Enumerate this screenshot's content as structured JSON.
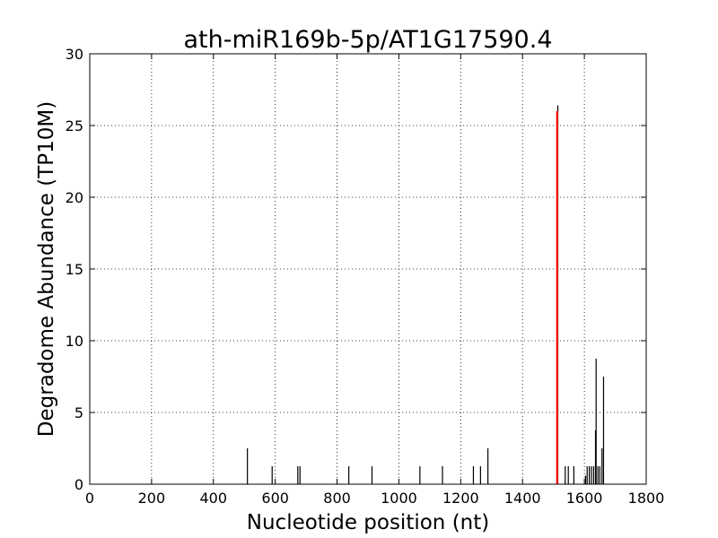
{
  "chart_data": {
    "type": "bar",
    "title": "ath-miR169b-5p/AT1G17590.4",
    "xlabel": "Nucleotide position (nt)",
    "ylabel": "Degradome Abundance (TP10M)",
    "xlim": [
      0,
      1800
    ],
    "ylim": [
      0,
      30
    ],
    "xticks": [
      0,
      200,
      400,
      600,
      800,
      1000,
      1200,
      1400,
      1600,
      1800
    ],
    "yticks": [
      0,
      5,
      10,
      15,
      20,
      25,
      30
    ],
    "grid": true,
    "series": [
      {
        "color": "#000000",
        "x": [
          510,
          590,
          673,
          680,
          838,
          913,
          1068,
          1141,
          1241,
          1264,
          1288,
          1538,
          1548,
          1566,
          1604,
          1609,
          1616,
          1623,
          1630,
          1636,
          1638,
          1644,
          1650,
          1657,
          1662
        ],
        "values": [
          2.5,
          1.25,
          1.25,
          1.25,
          1.25,
          1.25,
          1.25,
          1.25,
          1.25,
          1.25,
          2.5,
          1.25,
          1.25,
          1.25,
          0.6,
          1.25,
          1.25,
          1.25,
          1.25,
          3.75,
          8.75,
          1.25,
          1.25,
          2.5,
          7.5
        ]
      },
      {
        "color": "#ff0000",
        "x": [
          1512
        ],
        "values": [
          26.0
        ]
      }
    ],
    "extra_bar": {
      "x": 1514,
      "value": 26.4,
      "color": "#000000"
    }
  }
}
